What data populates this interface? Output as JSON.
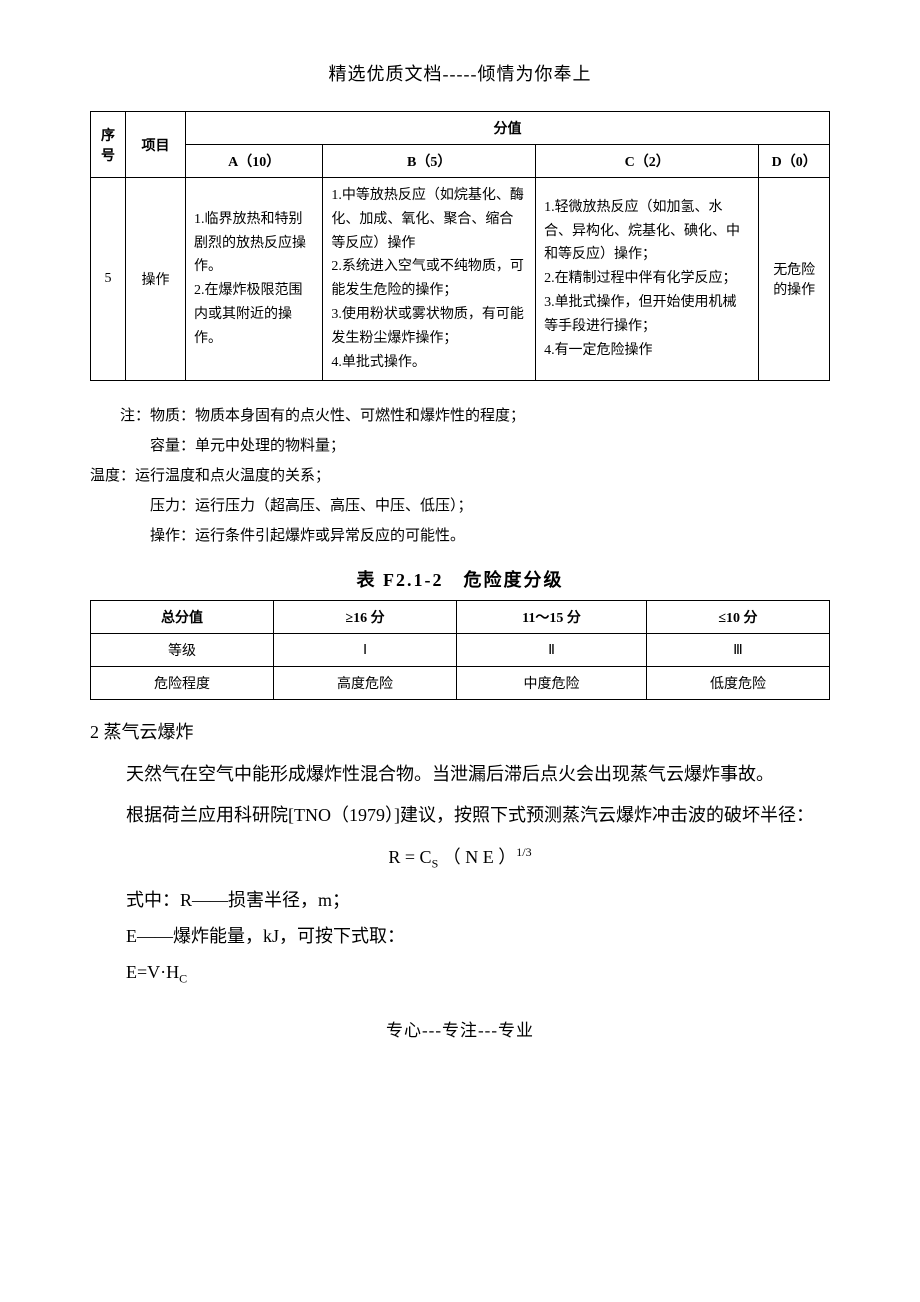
{
  "header": "精选优质文档-----倾情为你奉上",
  "main_table": {
    "header_row1": {
      "seq": "序号",
      "item": "项目",
      "score": "分值"
    },
    "header_row2": {
      "a": "A（10）",
      "b": "B（5）",
      "c": "C（2）",
      "d": "D（0）"
    },
    "data_row": {
      "seq": "5",
      "item": "操作",
      "a": "1.临界放热和特别剧烈的放热反应操作。\n2.在爆炸极限范围内或其附近的操作。",
      "b": "1.中等放热反应（如烷基化、酶化、加成、氧化、聚合、缩合等反应）操作\n2.系统进入空气或不纯物质，可能发生危险的操作；\n3.使用粉状或雾状物质，有可能发生粉尘爆炸操作；\n4.单批式操作。",
      "c": "1.轻微放热反应（如加氢、水合、异构化、烷基化、碘化、中和等反应）操作；\n2.在精制过程中伴有化学反应；\n3.单批式操作，但开始使用机械等手段进行操作；\n4.有一定危险操作",
      "d": "无危险的操作"
    }
  },
  "notes": {
    "n1": "注：物质：物质本身固有的点火性、可燃性和爆炸性的程度；",
    "n2": "容量：单元中处理的物料量；",
    "n3": "温度：运行温度和点火温度的关系；",
    "n4": "压力：运行压力（超高压、高压、中压、低压）；",
    "n5": "操作：运行条件引起爆炸或异常反应的可能性。"
  },
  "grade_table": {
    "title": "表 F2.1-2　危险度分级",
    "header": [
      "总分值",
      "≥16 分",
      "11～15 分",
      "≤10 分"
    ],
    "row1": [
      "等级",
      "Ⅰ",
      "Ⅱ",
      "Ⅲ"
    ],
    "row2": [
      "危险程度",
      "高度危险",
      "中度危险",
      "低度危险"
    ]
  },
  "section2": {
    "heading": "2 蒸气云爆炸",
    "p1": "天然气在空气中能形成爆炸性混合物。当泄漏后滞后点火会出现蒸气云爆炸事故。",
    "p2": "根据荷兰应用科研院[TNO（1979）]建议，按照下式预测蒸汽云爆炸冲击波的破坏半径：",
    "formula1_pre": "R = C",
    "formula1_sub": "S",
    "formula1_mid": " （ N E ）",
    "formula1_sup": "1/3",
    "f2": "式中：R——损害半径，m；",
    "f3": "E——爆炸能量，kJ，可按下式取：",
    "f4_pre": "E=V·H",
    "f4_sub": "C"
  },
  "footer": "专心---专注---专业"
}
